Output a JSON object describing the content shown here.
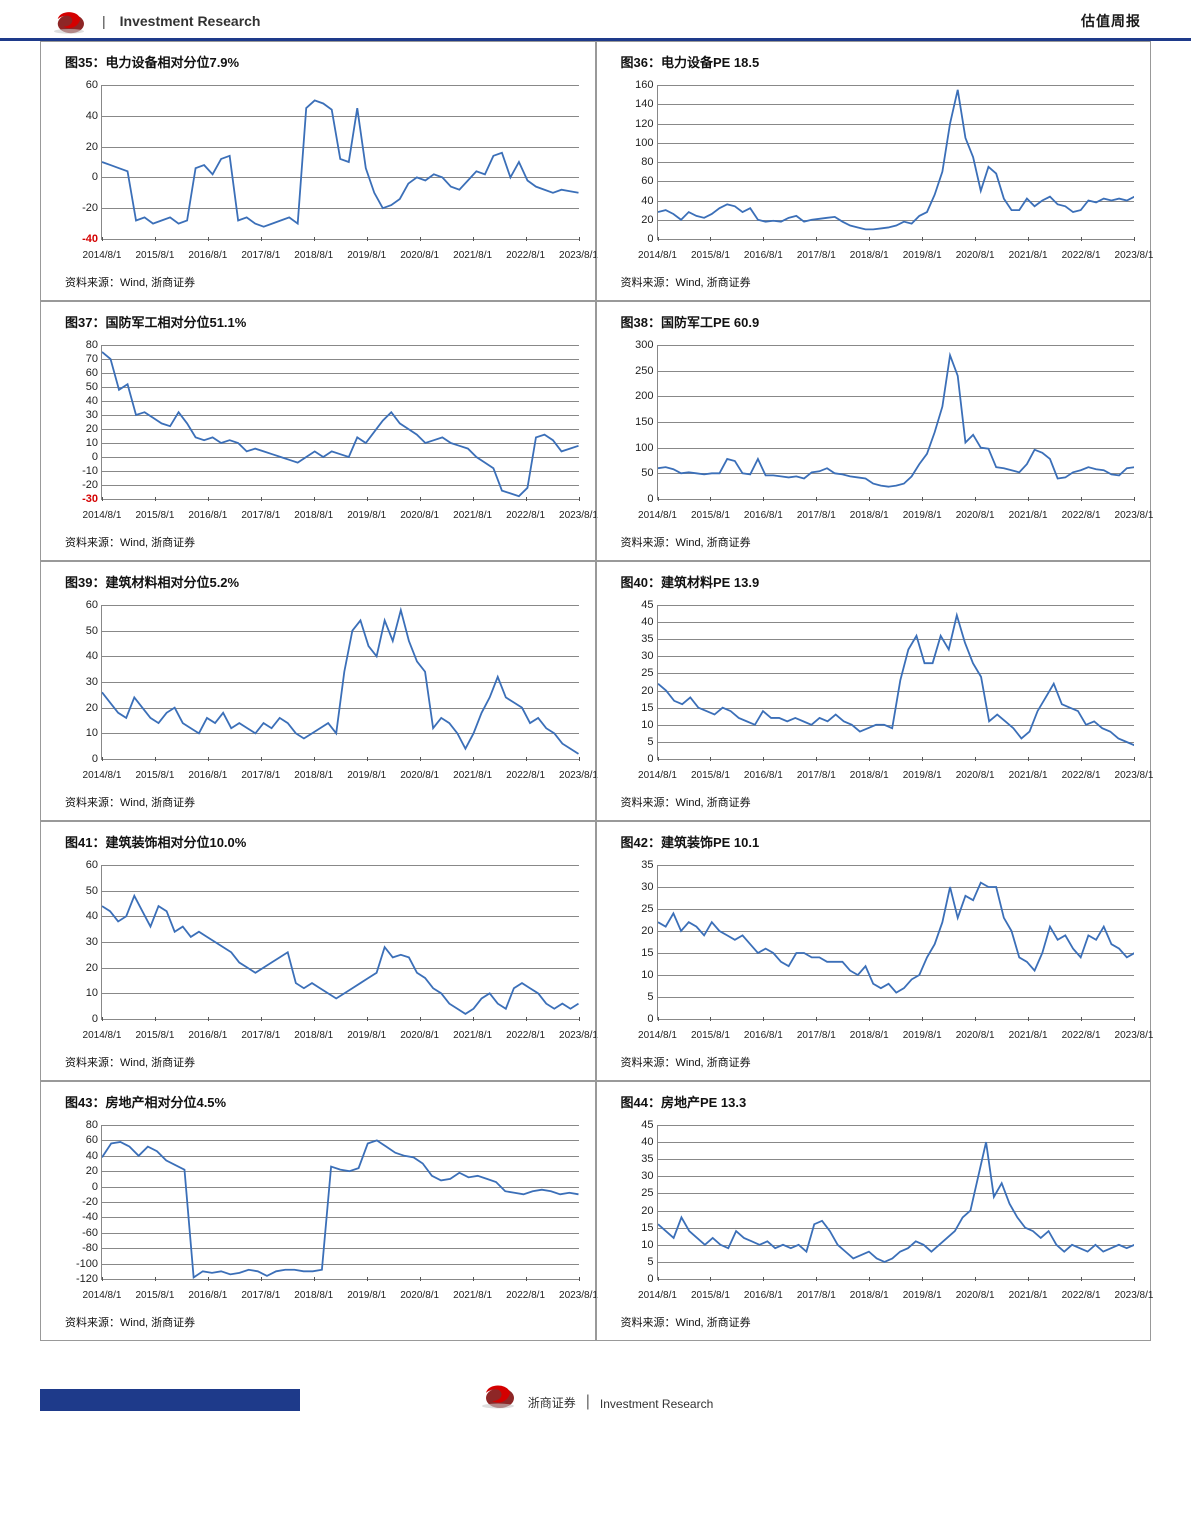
{
  "header": {
    "brand_text": "Investment Research",
    "right_text": "估值周报",
    "logo_color_front": "#d40000",
    "logo_color_back": "#7a0000"
  },
  "footer": {
    "brand_text": "浙商证券",
    "tagline": "Investment Research",
    "logo_color_front": "#d40000",
    "logo_color_back": "#7a0000",
    "blue_bar_color": "#1e3a8a"
  },
  "common": {
    "line_color": "#3b6fb8",
    "grid_color": "#888888",
    "bg_color": "#ffffff",
    "xlabels": [
      "2014/8/1",
      "2015/8/1",
      "2016/8/1",
      "2017/8/1",
      "2018/8/1",
      "2019/8/1",
      "2020/8/1",
      "2021/8/1",
      "2022/8/1",
      "2023/8/1"
    ],
    "source_text": "资料来源：Wind, 浙商证券"
  },
  "cells": [
    {
      "title": "图35：电力设备相对分位7.9%",
      "ymin": -40,
      "ymax": 60,
      "yticks": [
        -40,
        -20,
        0,
        20,
        40,
        60
      ],
      "yred": -40,
      "series": [
        10,
        8,
        6,
        4,
        -28,
        -26,
        -30,
        -28,
        -26,
        -30,
        -28,
        6,
        8,
        2,
        12,
        14,
        -28,
        -26,
        -30,
        -32,
        -30,
        -28,
        -26,
        -30,
        45,
        50,
        48,
        44,
        12,
        10,
        45,
        6,
        -10,
        -20,
        -18,
        -14,
        -4,
        0,
        -2,
        2,
        0,
        -6,
        -8,
        -2,
        4,
        2,
        14,
        16,
        0,
        10,
        -2,
        -6,
        -8,
        -10,
        -8,
        -9,
        -10
      ]
    },
    {
      "title": "图36：电力设备PE 18.5",
      "ymin": 0,
      "ymax": 160,
      "yticks": [
        0,
        20,
        40,
        60,
        80,
        100,
        120,
        140,
        160
      ],
      "yred": null,
      "series": [
        28,
        30,
        26,
        20,
        28,
        24,
        22,
        26,
        32,
        36,
        34,
        28,
        32,
        20,
        18,
        19,
        18,
        22,
        24,
        18,
        20,
        21,
        22,
        23,
        18,
        14,
        12,
        10,
        10,
        11,
        12,
        14,
        18,
        16,
        24,
        28,
        46,
        70,
        120,
        155,
        105,
        85,
        50,
        75,
        68,
        42,
        30,
        30,
        42,
        34,
        40,
        44,
        36,
        34,
        28,
        30,
        40,
        38,
        42,
        40,
        42,
        40,
        44
      ]
    },
    {
      "title": "图37：国防军工相对分位51.1%",
      "ymin": -30,
      "ymax": 80,
      "yticks": [
        -30,
        -20,
        -10,
        0,
        10,
        20,
        30,
        40,
        50,
        60,
        70,
        80
      ],
      "yred": -30,
      "series": [
        75,
        70,
        48,
        52,
        30,
        32,
        28,
        24,
        22,
        32,
        24,
        14,
        12,
        14,
        10,
        12,
        10,
        4,
        6,
        4,
        2,
        0,
        -2,
        -4,
        0,
        4,
        0,
        4,
        2,
        0,
        14,
        10,
        18,
        26,
        32,
        24,
        20,
        16,
        10,
        12,
        14,
        10,
        8,
        6,
        0,
        -4,
        -8,
        -24,
        -26,
        -28,
        -22,
        14,
        16,
        12,
        4,
        6,
        8
      ]
    },
    {
      "title": "图38：国防军工PE 60.9",
      "ymin": 0,
      "ymax": 300,
      "yticks": [
        0,
        50,
        100,
        150,
        200,
        250,
        300
      ],
      "yred": null,
      "series": [
        60,
        62,
        58,
        50,
        52,
        50,
        48,
        50,
        50,
        78,
        74,
        50,
        48,
        78,
        46,
        46,
        44,
        42,
        44,
        40,
        52,
        54,
        60,
        50,
        48,
        44,
        42,
        40,
        30,
        26,
        24,
        26,
        30,
        44,
        68,
        88,
        130,
        180,
        280,
        240,
        110,
        125,
        100,
        98,
        62,
        60,
        56,
        52,
        68,
        96,
        90,
        78,
        40,
        42,
        52,
        56,
        62,
        58,
        56,
        48,
        46,
        60,
        62
      ]
    },
    {
      "title": "图39：建筑材料相对分位5.2%",
      "ymin": 0,
      "ymax": 60,
      "yticks": [
        0,
        10,
        20,
        30,
        40,
        50,
        60
      ],
      "yred": null,
      "series": [
        26,
        22,
        18,
        16,
        24,
        20,
        16,
        14,
        18,
        20,
        14,
        12,
        10,
        16,
        14,
        18,
        12,
        14,
        12,
        10,
        14,
        12,
        16,
        14,
        10,
        8,
        10,
        12,
        14,
        10,
        34,
        50,
        54,
        44,
        40,
        54,
        46,
        58,
        46,
        38,
        34,
        12,
        16,
        14,
        10,
        4,
        10,
        18,
        24,
        32,
        24,
        22,
        20,
        14,
        16,
        12,
        10,
        6,
        4,
        2
      ]
    },
    {
      "title": "图40：建筑材料PE 13.9",
      "ymin": 0,
      "ymax": 45,
      "yticks": [
        0,
        5,
        10,
        15,
        20,
        25,
        30,
        35,
        40,
        45
      ],
      "yred": null,
      "series": [
        22,
        20,
        17,
        16,
        18,
        15,
        14,
        13,
        15,
        14,
        12,
        11,
        10,
        14,
        12,
        12,
        11,
        12,
        11,
        10,
        12,
        11,
        13,
        11,
        10,
        8,
        9,
        10,
        10,
        9,
        23,
        32,
        36,
        28,
        28,
        36,
        32,
        42,
        34,
        28,
        24,
        11,
        13,
        11,
        9,
        6,
        8,
        14,
        18,
        22,
        16,
        15,
        14,
        10,
        11,
        9,
        8,
        6,
        5,
        4
      ]
    },
    {
      "title": "图41：建筑装饰相对分位10.0%",
      "ymin": 0,
      "ymax": 60,
      "yticks": [
        0,
        10,
        20,
        30,
        40,
        50,
        60
      ],
      "yred": null,
      "series": [
        44,
        42,
        38,
        40,
        48,
        42,
        36,
        44,
        42,
        34,
        36,
        32,
        34,
        32,
        30,
        28,
        26,
        22,
        20,
        18,
        20,
        22,
        24,
        26,
        14,
        12,
        14,
        12,
        10,
        8,
        10,
        12,
        14,
        16,
        18,
        28,
        24,
        25,
        24,
        18,
        16,
        12,
        10,
        6,
        4,
        2,
        4,
        8,
        10,
        6,
        4,
        12,
        14,
        12,
        10,
        6,
        4,
        6,
        4,
        6
      ]
    },
    {
      "title": "图42：建筑装饰PE 10.1",
      "ymin": 0,
      "ymax": 35,
      "yticks": [
        0,
        5,
        10,
        15,
        20,
        25,
        30,
        35
      ],
      "yred": null,
      "series": [
        22,
        21,
        24,
        20,
        22,
        21,
        19,
        22,
        20,
        19,
        18,
        19,
        17,
        15,
        16,
        15,
        13,
        12,
        15,
        15,
        14,
        14,
        13,
        13,
        13,
        11,
        10,
        12,
        8,
        7,
        8,
        6,
        7,
        9,
        10,
        14,
        17,
        22,
        30,
        23,
        28,
        27,
        31,
        30,
        30,
        23,
        20,
        14,
        13,
        11,
        15,
        21,
        18,
        19,
        16,
        14,
        19,
        18,
        21,
        17,
        16,
        14,
        15
      ]
    },
    {
      "title": "图43：房地产相对分位4.5%",
      "ymin": -120,
      "ymax": 80,
      "yticks": [
        -120,
        -100,
        -80,
        -60,
        -40,
        -20,
        0,
        20,
        40,
        60,
        80
      ],
      "yred": null,
      "series": [
        38,
        56,
        58,
        52,
        40,
        52,
        46,
        34,
        28,
        22,
        -118,
        -110,
        -112,
        -110,
        -114,
        -112,
        -108,
        -110,
        -116,
        -110,
        -108,
        -108,
        -110,
        -110,
        -108,
        26,
        22,
        20,
        24,
        56,
        60,
        52,
        44,
        40,
        38,
        30,
        14,
        8,
        10,
        18,
        12,
        14,
        10,
        6,
        -6,
        -8,
        -10,
        -6,
        -4,
        -6,
        -10,
        -8,
        -10
      ]
    },
    {
      "title": "图44：房地产PE 13.3",
      "ymin": 0,
      "ymax": 45,
      "yticks": [
        0,
        5,
        10,
        15,
        20,
        25,
        30,
        35,
        40,
        45
      ],
      "yred": null,
      "series": [
        16,
        14,
        12,
        18,
        14,
        12,
        10,
        12,
        10,
        9,
        14,
        12,
        11,
        10,
        11,
        9,
        10,
        9,
        10,
        8,
        16,
        17,
        14,
        10,
        8,
        6,
        7,
        8,
        6,
        5,
        6,
        8,
        9,
        11,
        10,
        8,
        10,
        12,
        14,
        18,
        20,
        30,
        40,
        24,
        28,
        22,
        18,
        15,
        14,
        12,
        14,
        10,
        8,
        10,
        9,
        8,
        10,
        8,
        9,
        10,
        9,
        10
      ]
    }
  ]
}
